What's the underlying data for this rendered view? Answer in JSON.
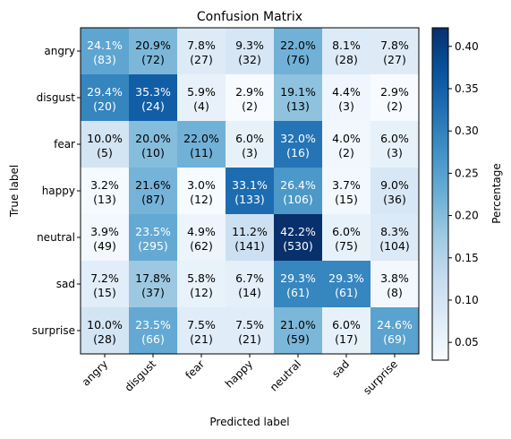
{
  "chart_data": {
    "type": "heatmap",
    "title": "Confusion Matrix",
    "xlabel": "Predicted label",
    "ylabel": "True label",
    "x_categories": [
      "angry",
      "disgust",
      "fear",
      "happy",
      "neutral",
      "sad",
      "surprise"
    ],
    "y_categories": [
      "angry",
      "disgust",
      "fear",
      "happy",
      "neutral",
      "sad",
      "surprise"
    ],
    "percent_labels": [
      [
        "24.1%",
        "20.9%",
        "7.8%",
        "9.3%",
        "22.0%",
        "8.1%",
        "7.8%"
      ],
      [
        "29.4%",
        "35.3%",
        "5.9%",
        "2.9%",
        "19.1%",
        "4.4%",
        "2.9%"
      ],
      [
        "10.0%",
        "20.0%",
        "22.0%",
        "6.0%",
        "32.0%",
        "4.0%",
        "6.0%"
      ],
      [
        "3.2%",
        "21.6%",
        "3.0%",
        "33.1%",
        "26.4%",
        "3.7%",
        "9.0%"
      ],
      [
        "3.9%",
        "23.5%",
        "4.9%",
        "11.2%",
        "42.2%",
        "6.0%",
        "8.3%"
      ],
      [
        "7.2%",
        "17.8%",
        "5.8%",
        "6.7%",
        "29.3%",
        "29.3%",
        "3.8%"
      ],
      [
        "10.0%",
        "23.5%",
        "7.5%",
        "7.5%",
        "21.0%",
        "6.0%",
        "24.6%"
      ]
    ],
    "values": [
      [
        0.241,
        0.209,
        0.078,
        0.093,
        0.22,
        0.081,
        0.078
      ],
      [
        0.294,
        0.353,
        0.059,
        0.029,
        0.191,
        0.044,
        0.029
      ],
      [
        0.1,
        0.2,
        0.22,
        0.06,
        0.32,
        0.04,
        0.06
      ],
      [
        0.032,
        0.216,
        0.03,
        0.331,
        0.264,
        0.037,
        0.09
      ],
      [
        0.039,
        0.235,
        0.049,
        0.112,
        0.422,
        0.06,
        0.083
      ],
      [
        0.072,
        0.178,
        0.058,
        0.067,
        0.293,
        0.293,
        0.038
      ],
      [
        0.1,
        0.235,
        0.075,
        0.075,
        0.21,
        0.06,
        0.246
      ]
    ],
    "count_labels": [
      [
        "(83)",
        "(72)",
        "(27)",
        "(32)",
        "(76)",
        "(28)",
        "(27)"
      ],
      [
        "(20)",
        "(24)",
        "(4)",
        "(2)",
        "(13)",
        "(3)",
        "(2)"
      ],
      [
        "(5)",
        "(10)",
        "(11)",
        "(3)",
        "(16)",
        "(2)",
        "(3)"
      ],
      [
        "(13)",
        "(87)",
        "(12)",
        "(133)",
        "(106)",
        "(15)",
        "(36)"
      ],
      [
        "(49)",
        "(295)",
        "(62)",
        "(141)",
        "(530)",
        "(75)",
        "(104)"
      ],
      [
        "(15)",
        "(37)",
        "(12)",
        "(14)",
        "(61)",
        "(61)",
        "(8)"
      ],
      [
        "(28)",
        "(66)",
        "(21)",
        "(21)",
        "(59)",
        "(17)",
        "(69)"
      ]
    ],
    "colorbar": {
      "label": "Percentage",
      "range": [
        0.029,
        0.422
      ],
      "ticks": [
        0.05,
        0.1,
        0.15,
        0.2,
        0.25,
        0.3,
        0.35,
        0.4
      ],
      "tick_labels": [
        "0.05",
        "0.10",
        "0.15",
        "0.20",
        "0.25",
        "0.30",
        "0.35",
        "0.40"
      ]
    },
    "colormap": "Blues",
    "grid": false
  }
}
